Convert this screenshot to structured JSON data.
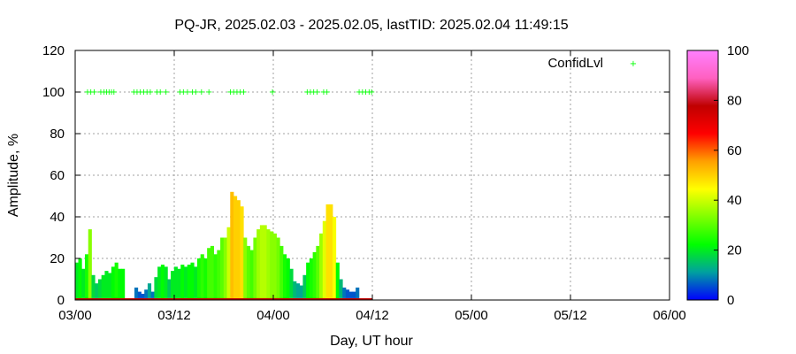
{
  "chart_data": {
    "type": "bar",
    "title": "PQ-JR, 2025.02.03 - 2025.02.05, lastTID: 2025.02.04 11:49:15",
    "xlabel": "Day, UT hour",
    "ylabel": "Amplitude, %",
    "xlim": [
      0,
      72
    ],
    "ylim": [
      0,
      120
    ],
    "x_ticks": [
      0,
      12,
      24,
      36,
      48,
      60,
      72
    ],
    "x_tick_labels": [
      "03/00",
      "03/12",
      "04/00",
      "04/12",
      "05/00",
      "05/12",
      "06/00"
    ],
    "y_ticks": [
      0,
      20,
      40,
      60,
      80,
      100,
      120
    ],
    "y_tick_labels": [
      "0",
      "20",
      "40",
      "60",
      "80",
      "100",
      "120"
    ],
    "grid": true,
    "legend": {
      "label": "ConfidLvl",
      "position": "top-right",
      "color": "#00ff00"
    },
    "colorbar": {
      "range": [
        0,
        100
      ],
      "ticks": [
        "0",
        "20",
        "40",
        "60",
        "80",
        "100"
      ],
      "colors": [
        "#0000ff",
        "#00a0a0",
        "#00ff00",
        "#80ff00",
        "#ffff00",
        "#ffa000",
        "#ff0000",
        "#c00000",
        "#ff60c0",
        "#ff80ff"
      ]
    },
    "amplitude_series": {
      "x": [
        0.2,
        0.6,
        1.0,
        1.4,
        1.8,
        2.2,
        2.6,
        3.0,
        3.4,
        3.8,
        4.2,
        4.6,
        5.0,
        5.4,
        5.8,
        6.2,
        6.6,
        7.0,
        7.4,
        7.8,
        8.2,
        8.6,
        9.0,
        9.4,
        9.8,
        10.2,
        10.6,
        11.0,
        11.4,
        11.8,
        12.2,
        12.6,
        13.0,
        13.4,
        13.8,
        14.2,
        14.6,
        15.0,
        15.4,
        15.8,
        16.2,
        16.6,
        17.0,
        17.4,
        17.8,
        18.2,
        18.6,
        19.0,
        19.4,
        19.8,
        20.2,
        20.6,
        21.0,
        21.4,
        21.8,
        22.2,
        22.6,
        23.0,
        23.4,
        23.8,
        24.2,
        24.6,
        25.0,
        25.4,
        25.8,
        26.2,
        26.6,
        27.0,
        27.4,
        27.8,
        28.2,
        28.6,
        29.0,
        29.4,
        29.8,
        30.2,
        30.6,
        31.0,
        31.4,
        31.8,
        32.2,
        32.6,
        33.0,
        33.4,
        33.8,
        34.2,
        34.6,
        35.0,
        35.4,
        35.8
      ],
      "y": [
        18,
        20,
        15,
        22,
        34,
        12,
        8,
        10,
        12,
        14,
        13,
        16,
        18,
        15,
        15,
        0,
        0,
        0,
        6,
        4,
        3,
        5,
        8,
        4,
        11,
        16,
        17,
        16,
        10,
        14,
        16,
        15,
        17,
        16,
        17,
        18,
        16,
        20,
        22,
        20,
        25,
        26,
        22,
        24,
        30,
        30,
        35,
        52,
        50,
        48,
        45,
        30,
        26,
        24,
        30,
        34,
        36,
        36,
        34,
        33,
        32,
        30,
        26,
        22,
        20,
        15,
        9,
        8,
        7,
        12,
        18,
        20,
        23,
        26,
        32,
        38,
        46,
        46,
        40,
        18,
        10,
        6,
        5,
        4,
        4,
        6,
        0,
        0,
        0,
        0
      ],
      "confidence": [
        20,
        22,
        20,
        24,
        34,
        18,
        16,
        18,
        20,
        20,
        20,
        22,
        24,
        22,
        22,
        0,
        0,
        0,
        8,
        6,
        6,
        8,
        12,
        8,
        18,
        20,
        22,
        20,
        16,
        20,
        20,
        20,
        22,
        20,
        22,
        22,
        20,
        24,
        26,
        24,
        28,
        28,
        26,
        28,
        30,
        34,
        40,
        52,
        50,
        50,
        48,
        34,
        30,
        28,
        32,
        36,
        38,
        38,
        36,
        34,
        34,
        32,
        28,
        24,
        22,
        18,
        14,
        12,
        12,
        16,
        22,
        24,
        26,
        30,
        36,
        42,
        48,
        48,
        44,
        22,
        14,
        8,
        6,
        6,
        6,
        8,
        0,
        0,
        0,
        0
      ]
    },
    "confid_series": {
      "x": [
        1.5,
        1.9,
        2.3,
        3.1,
        3.5,
        3.8,
        4.1,
        4.4,
        4.7,
        7.1,
        7.5,
        7.9,
        8.3,
        8.7,
        9.1,
        9.9,
        10.3,
        11.0,
        12.7,
        13.1,
        13.6,
        14.2,
        14.6,
        15.3,
        16.2,
        18.8,
        19.2,
        19.6,
        20.0,
        20.4,
        23.9,
        28.1,
        28.5,
        28.9,
        29.3,
        30.1,
        30.5,
        34.4,
        34.8,
        35.2,
        35.6,
        35.9
      ],
      "y": [
        100,
        100,
        100,
        100,
        100,
        100,
        100,
        100,
        100,
        100,
        100,
        100,
        100,
        100,
        100,
        100,
        100,
        100,
        100,
        100,
        100,
        100,
        100,
        100,
        100,
        100,
        100,
        100,
        100,
        100,
        100,
        100,
        100,
        100,
        100,
        100,
        100,
        100,
        100,
        100,
        100,
        100
      ]
    }
  }
}
